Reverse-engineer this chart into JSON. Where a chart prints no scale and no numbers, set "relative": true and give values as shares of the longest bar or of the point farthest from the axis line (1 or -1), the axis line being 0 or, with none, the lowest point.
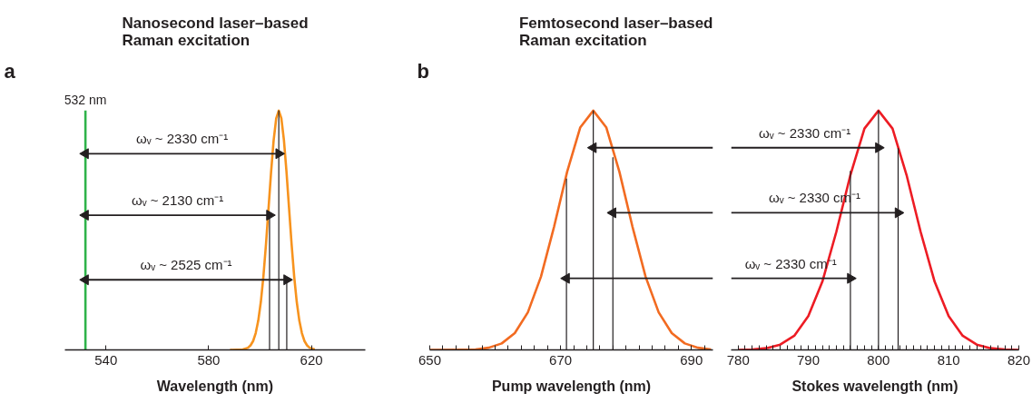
{
  "chart_data": [
    {
      "type": "line",
      "title": "Nanosecond laser–based\nRaman excitation",
      "xlabel": "Wavelength (nm)",
      "relative": true,
      "xlim": [
        524,
        641
      ],
      "xticks": [
        540,
        580,
        620
      ],
      "annotations": [
        "a",
        "ωᵥ ~ 2330 cm⁻¹",
        "ωᵥ ~ 2130 cm⁻¹",
        "ωᵥ ~ 2525 cm⁻¹"
      ],
      "series": [
        {
          "name": "532 nm",
          "color": "#2fb34a",
          "x": [
            532,
            532
          ],
          "values": [
            0,
            1.0
          ]
        },
        {
          "color": "#f7931e",
          "x": [
            588.3,
            593.3,
            595.3,
            596.3,
            597.3,
            598.3,
            599.3,
            600.3,
            601.3,
            602.3,
            603.3,
            604.3,
            605.3,
            606.3,
            607.3,
            608.3,
            609.3,
            610.3,
            611.3,
            612.3,
            613.3,
            614.3,
            615.3,
            616.3,
            617.3,
            618.3,
            619.3,
            621.3
          ],
          "values": [
            0,
            0.002,
            0.009,
            0.019,
            0.037,
            0.07,
            0.122,
            0.2,
            0.306,
            0.44,
            0.591,
            0.744,
            0.877,
            0.968,
            1,
            0.968,
            0.877,
            0.744,
            0.591,
            0.44,
            0.306,
            0.2,
            0.122,
            0.07,
            0.037,
            0.019,
            0.009,
            0.002
          ]
        },
        {
          "color": "#231f20",
          "x": [
            603.7,
            603.7
          ],
          "values": [
            0,
            0.563
          ]
        },
        {
          "color": "#231f20",
          "x": [
            607.3,
            607.3
          ],
          "values": [
            0,
            1.0
          ]
        },
        {
          "color": "#231f20",
          "x": [
            610.4,
            610.4
          ],
          "values": [
            0,
            0.293
          ]
        },
        {
          "color": "#231f20",
          "marker": "triangle",
          "x": [
            532,
            607.3
          ],
          "values": [
            0.82,
            0.82
          ]
        },
        {
          "color": "#231f20",
          "marker": "triangle",
          "x": [
            532,
            603.7
          ],
          "values": [
            0.563,
            0.563
          ]
        },
        {
          "color": "#231f20",
          "marker": "triangle",
          "x": [
            532,
            610.4
          ],
          "values": [
            0.293,
            0.293
          ]
        }
      ]
    },
    {
      "type": "line",
      "title": "Femtosecond laser–based\nRaman excitation",
      "xlabel": "Pump wavelength (nm)",
      "relative": true,
      "xlim": [
        650,
        693.3
      ],
      "xticks": [
        650,
        {
          "value": 652,
          "label": null
        },
        {
          "value": 654,
          "label": null
        },
        {
          "value": 656,
          "label": null
        },
        {
          "value": 658,
          "label": null
        },
        {
          "value": 660,
          "label": null
        },
        {
          "value": 662,
          "label": null
        },
        {
          "value": 664,
          "label": null
        },
        {
          "value": 666,
          "label": null
        },
        {
          "value": 668,
          "label": null
        },
        670,
        {
          "value": 672,
          "label": null
        },
        {
          "value": 674,
          "label": null
        },
        {
          "value": 676,
          "label": null
        },
        {
          "value": 678,
          "label": null
        },
        {
          "value": 680,
          "label": null
        },
        {
          "value": 682,
          "label": null
        },
        {
          "value": 684,
          "label": null
        },
        {
          "value": 686,
          "label": null
        },
        {
          "value": 688,
          "label": null
        },
        690,
        {
          "value": 692,
          "label": null
        }
      ],
      "annotations": [
        "b"
      ],
      "series": [
        {
          "color": "#f26b21",
          "x": [
            650,
            655,
            657,
            659,
            661,
            663,
            665,
            667,
            669,
            671,
            673,
            675,
            677,
            679,
            681,
            683,
            685,
            687,
            689,
            691,
            693
          ],
          "values": [
            0,
            0.001,
            0.002,
            0.009,
            0.027,
            0.07,
            0.157,
            0.306,
            0.514,
            0.744,
            0.929,
            1,
            0.929,
            0.744,
            0.514,
            0.306,
            0.157,
            0.07,
            0.027,
            0.009,
            0.002
          ]
        },
        {
          "color": "#231f20",
          "x": [
            670.9,
            670.9
          ],
          "values": [
            0,
            0.716
          ]
        },
        {
          "color": "#231f20",
          "x": [
            675,
            675
          ],
          "values": [
            0,
            1.0
          ]
        },
        {
          "color": "#231f20",
          "x": [
            678,
            678
          ],
          "values": [
            0,
            0.805
          ]
        },
        {
          "color": "#231f20",
          "marker": "triangle",
          "x": [
            675,
            693.3
          ],
          "values": [
            0.845,
            0.845
          ]
        },
        {
          "color": "#231f20",
          "marker": "triangle",
          "x": [
            678,
            693.3
          ],
          "values": [
            0.573,
            0.573
          ]
        },
        {
          "color": "#231f20",
          "marker": "triangle",
          "x": [
            670.9,
            693.3
          ],
          "values": [
            0.299,
            0.299
          ]
        }
      ]
    },
    {
      "type": "line",
      "xlabel": "Stokes wavelength (nm)",
      "relative": true,
      "xlim": [
        779,
        820
      ],
      "xticks": [
        780,
        {
          "value": 781,
          "label": null
        },
        {
          "value": 782,
          "label": null
        },
        {
          "value": 783,
          "label": null
        },
        {
          "value": 784,
          "label": null
        },
        {
          "value": 785,
          "label": null
        },
        {
          "value": 786,
          "label": null
        },
        {
          "value": 787,
          "label": null
        },
        {
          "value": 788,
          "label": null
        },
        {
          "value": 789,
          "label": null
        },
        790,
        {
          "value": 791,
          "label": null
        },
        {
          "value": 792,
          "label": null
        },
        {
          "value": 793,
          "label": null
        },
        {
          "value": 794,
          "label": null
        },
        {
          "value": 795,
          "label": null
        },
        {
          "value": 796,
          "label": null
        },
        {
          "value": 797,
          "label": null
        },
        {
          "value": 798,
          "label": null
        },
        {
          "value": 799,
          "label": null
        },
        800,
        {
          "value": 801,
          "label": null
        },
        {
          "value": 802,
          "label": null
        },
        {
          "value": 803,
          "label": null
        },
        {
          "value": 804,
          "label": null
        },
        {
          "value": 805,
          "label": null
        },
        {
          "value": 806,
          "label": null
        },
        {
          "value": 807,
          "label": null
        },
        {
          "value": 808,
          "label": null
        },
        {
          "value": 809,
          "label": null
        },
        810,
        {
          "value": 811,
          "label": null
        },
        {
          "value": 812,
          "label": null
        },
        {
          "value": 813,
          "label": null
        },
        {
          "value": 814,
          "label": null
        },
        {
          "value": 815,
          "label": null
        },
        {
          "value": 816,
          "label": null
        },
        {
          "value": 817,
          "label": null
        },
        {
          "value": 818,
          "label": null
        },
        {
          "value": 819,
          "label": null
        },
        820
      ],
      "annotations": [
        "ωᵥ ~ 2330 cm⁻¹",
        "ωᵥ ~ 2330 cm⁻¹",
        "ωᵥ ~ 2330 cm⁻¹"
      ],
      "series": [
        {
          "color": "#ed1c24",
          "x": [
            780,
            782,
            784,
            786,
            788,
            790,
            792,
            794,
            796,
            798,
            800,
            802,
            804,
            806,
            808,
            810,
            812,
            814,
            816,
            818,
            820
          ],
          "values": [
            0,
            0.002,
            0.007,
            0.022,
            0.059,
            0.141,
            0.285,
            0.494,
            0.731,
            0.925,
            1,
            0.925,
            0.731,
            0.494,
            0.285,
            0.141,
            0.059,
            0.022,
            0.007,
            0.002,
            0
          ]
        },
        {
          "color": "#231f20",
          "x": [
            796,
            796
          ],
          "values": [
            0,
            0.748
          ]
        },
        {
          "color": "#231f20",
          "x": [
            800,
            800
          ],
          "values": [
            0,
            1.0
          ]
        },
        {
          "color": "#231f20",
          "x": [
            802.8,
            802.8
          ],
          "values": [
            0,
            0.843
          ]
        },
        {
          "color": "#231f20",
          "marker": "triangle",
          "x": [
            779,
            800
          ],
          "values": [
            0.845,
            0.845
          ]
        },
        {
          "color": "#231f20",
          "marker": "triangle",
          "x": [
            779,
            802.8
          ],
          "values": [
            0.573,
            0.573
          ]
        },
        {
          "color": "#231f20",
          "marker": "triangle",
          "x": [
            779,
            796
          ],
          "values": [
            0.299,
            0.299
          ]
        }
      ]
    }
  ]
}
